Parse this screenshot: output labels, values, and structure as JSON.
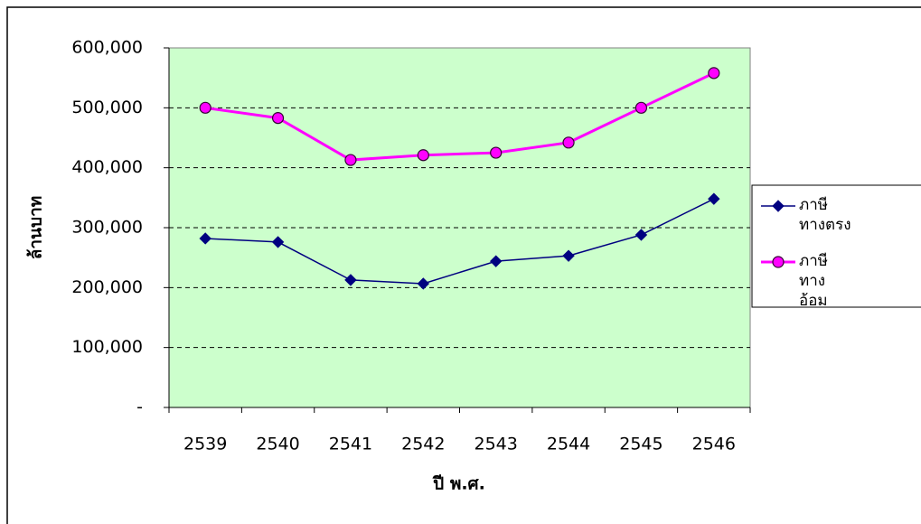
{
  "chart_data": {
    "type": "line",
    "x_label": "ปี พ.ศ.",
    "y_label": "ล้านบาท",
    "categories": [
      "2539",
      "2540",
      "2541",
      "2542",
      "2543",
      "2544",
      "2545",
      "2546"
    ],
    "series": [
      {
        "name": "ภาษีทางตรง",
        "color": "#000080",
        "marker": "diamond",
        "values": [
          282000,
          276000,
          212700,
          206600,
          244000,
          253000,
          288000,
          348000
        ]
      },
      {
        "name": "ภาษีทางอ้อม",
        "color": "#ff00ff",
        "marker": "circle",
        "values": [
          500000,
          483000,
          413000,
          421000,
          425000,
          442000,
          500000,
          558000
        ]
      }
    ],
    "ylim": [
      0,
      600000
    ],
    "yticks": [
      {
        "value": 0,
        "label": "-"
      },
      {
        "value": 100000,
        "label": "100,000"
      },
      {
        "value": 200000,
        "label": "200,000"
      },
      {
        "value": 300000,
        "label": "300,000"
      },
      {
        "value": 400000,
        "label": "400,000"
      },
      {
        "value": 500000,
        "label": "500,000"
      },
      {
        "value": 600000,
        "label": "600,000"
      }
    ],
    "grid": true,
    "plot_background": "#ccffcc"
  }
}
